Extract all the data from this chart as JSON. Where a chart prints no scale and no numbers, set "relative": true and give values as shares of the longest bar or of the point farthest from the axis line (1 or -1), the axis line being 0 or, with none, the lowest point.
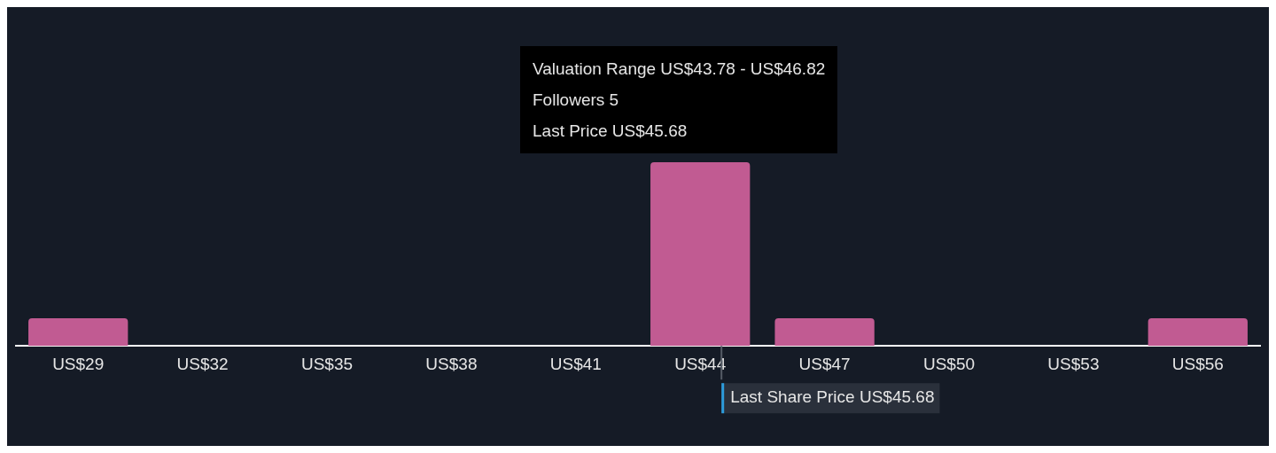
{
  "chart_data": {
    "type": "bar",
    "relative": true,
    "categories": [
      "US$29",
      "US$32",
      "US$35",
      "US$38",
      "US$41",
      "US$44",
      "US$47",
      "US$50",
      "US$53",
      "US$56"
    ],
    "values": [
      0.15,
      0,
      0,
      0,
      0,
      1,
      0.15,
      0,
      0,
      0.15
    ],
    "color": "#c15b92",
    "ref_lines": [
      {
        "axis": "x",
        "value": "US$44",
        "label": "Last Share Price US$45.68",
        "color": "#555c66"
      }
    ],
    "annotations": [
      "Valuation Range US$43.78 - US$46.82",
      "Followers 5",
      "Last Price US$45.68"
    ],
    "grid": false,
    "legend": false
  }
}
